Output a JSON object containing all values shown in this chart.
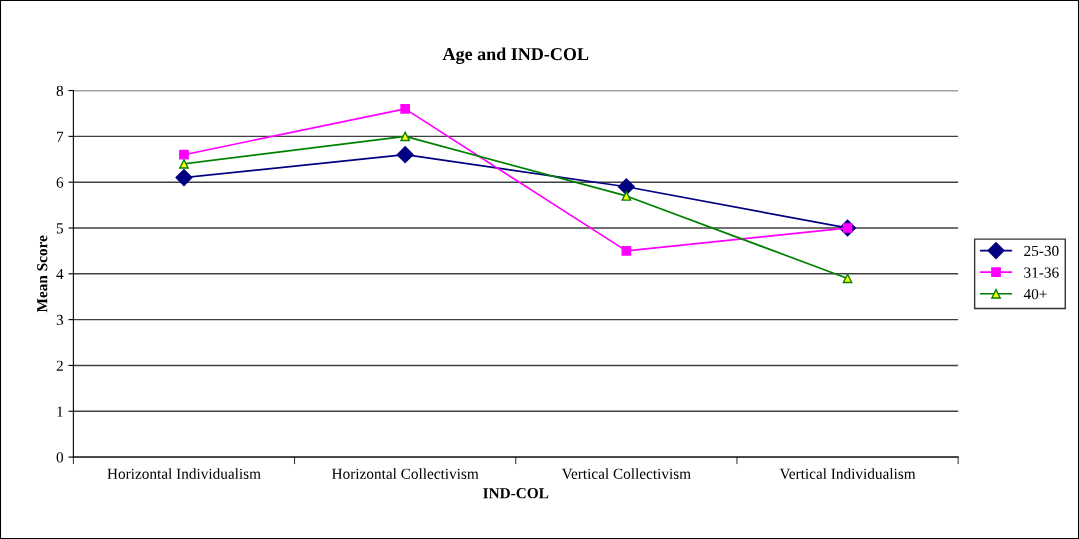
{
  "chart_data": {
    "type": "line",
    "title": "Age and IND-COL",
    "xlabel": "IND-COL",
    "ylabel": "Mean Score",
    "categories": [
      "Horizontal Individualism",
      "Horizontal Collectivism",
      "Vertical Collectivism",
      "Vertical Individualism"
    ],
    "series": [
      {
        "name": "25-30",
        "color": "#000080",
        "marker": "diamond",
        "values": [
          6.1,
          6.6,
          5.9,
          5.0
        ]
      },
      {
        "name": "31-36",
        "color": "#ff00ff",
        "marker": "square",
        "values": [
          6.6,
          7.6,
          4.5,
          5.0
        ]
      },
      {
        "name": "40+",
        "color": "#008000",
        "marker": "triangle",
        "values": [
          6.4,
          7.0,
          5.7,
          3.9
        ]
      }
    ],
    "ylim": [
      0,
      8
    ],
    "yticks": [
      0,
      1,
      2,
      3,
      4,
      5,
      6,
      7,
      8
    ],
    "grid": "y",
    "legend": "right",
    "line_style": "solid"
  }
}
